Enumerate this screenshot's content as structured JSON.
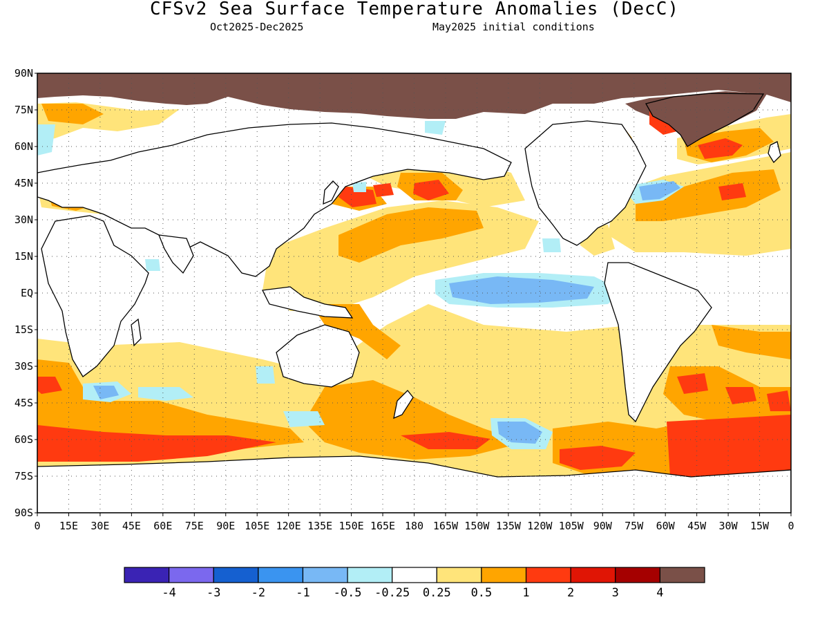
{
  "title": "CFSv2 Sea Surface Temperature Anomalies (DecC)",
  "subtitle_left": "Oct2025-Dec2025",
  "subtitle_right": "May2025 initial conditions",
  "lat_labels": [
    "90N",
    "75N",
    "60N",
    "45N",
    "30N",
    "15N",
    "EQ",
    "15S",
    "30S",
    "45S",
    "60S",
    "75S",
    "90S"
  ],
  "lon_labels": [
    "0",
    "15E",
    "30E",
    "45E",
    "60E",
    "75E",
    "90E",
    "105E",
    "120E",
    "135E",
    "150E",
    "165E",
    "180",
    "165W",
    "150W",
    "135W",
    "120W",
    "105W",
    "90W",
    "75W",
    "60W",
    "45W",
    "30W",
    "15W",
    "0"
  ],
  "colorbar": {
    "colors": [
      "#3a23b4",
      "#7b68ee",
      "#1560d0",
      "#3a94f0",
      "#78b8f5",
      "#b2eef6",
      "#ffffff",
      "#ffe47a",
      "#ffa500",
      "#ff3a10",
      "#e01505",
      "#a50000",
      "#7a5048"
    ],
    "tick_labels": [
      "-4",
      "-3",
      "-2",
      "-1",
      "-0.5",
      "-0.25",
      "0.25",
      "0.5",
      "1",
      "2",
      "3",
      "4"
    ]
  }
}
